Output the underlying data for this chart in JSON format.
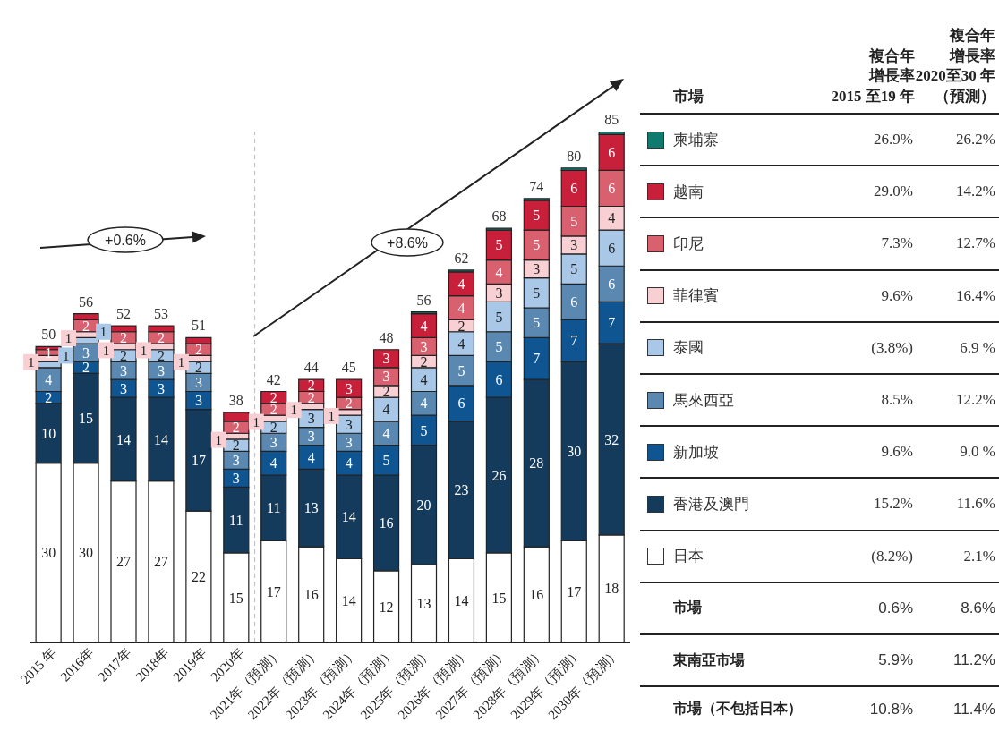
{
  "chart_data": [
    {
      "type": "bar",
      "stacked": true,
      "categories": [
        "2015 年",
        "2016年",
        "2017年",
        "2018年",
        "2019年",
        "2020年",
        "2021年（預測）",
        "2022年（預測）",
        "2023年（預測）",
        "2024年（預測）",
        "2025年（預測）",
        "2026年（預測）",
        "2027年（預測）",
        "2028年（預測）",
        "2029年（預測）",
        "2030年（預測）"
      ],
      "series": [
        {
          "color": "#ffffff",
          "values": [
            30,
            30,
            27,
            27,
            22,
            15,
            17,
            16,
            14,
            12,
            13,
            14,
            15,
            16,
            17,
            18
          ],
          "value_labels": [
            "30",
            "30",
            "27",
            "27",
            "22",
            "15",
            "17",
            "16",
            "14",
            "12",
            "13",
            "14",
            "15",
            "16",
            "17",
            "18"
          ]
        },
        {
          "color": "#143a5c",
          "values": [
            10,
            15,
            14,
            14,
            17,
            11,
            11,
            13,
            14,
            16,
            20,
            23,
            26,
            28,
            30,
            32
          ],
          "value_labels": [
            "10",
            "15",
            "14",
            "14",
            "17",
            "11",
            "11",
            "13",
            "14",
            "16",
            "20",
            "23",
            "26",
            "28",
            "30",
            "32"
          ]
        },
        {
          "color": "#0e5592",
          "values": [
            2,
            2,
            3,
            3,
            3,
            3,
            4,
            4,
            4,
            5,
            5,
            6,
            6,
            7,
            7,
            7
          ],
          "value_labels": [
            "2",
            "2",
            "3",
            "3",
            "3",
            "3",
            "4",
            "4",
            "4",
            "5",
            "5",
            "6",
            "6",
            "7",
            "7",
            "7"
          ]
        },
        {
          "color": "#5a88b0",
          "values": [
            4,
            3,
            3,
            3,
            3,
            3,
            3,
            3,
            3,
            4,
            4,
            5,
            5,
            5,
            6,
            6
          ],
          "value_labels": [
            "4",
            "3",
            "3",
            "3",
            "3",
            "3",
            "3",
            "3",
            "3",
            "4",
            "4",
            "5",
            "5",
            "5",
            "6",
            "6"
          ]
        },
        {
          "color": "#a9c8e8",
          "values": [
            1,
            1,
            2,
            2,
            2,
            2,
            2,
            3,
            3,
            4,
            4,
            4,
            5,
            5,
            5,
            6
          ],
          "value_labels": [
            "1",
            "1",
            "2",
            "2",
            "2",
            "2",
            "2",
            "3",
            "3",
            "4",
            "4",
            "4",
            "5",
            "5",
            "5",
            "6"
          ]
        },
        {
          "color": "#f8d0d4",
          "values": [
            1,
            1,
            1,
            1,
            1,
            1,
            1,
            1,
            1,
            2,
            2,
            2,
            3,
            3,
            3,
            4
          ],
          "value_labels": [
            "1",
            "1",
            "1",
            "1",
            "1",
            "1",
            "1",
            "1",
            "1",
            "2",
            "2",
            "2",
            "3",
            "3",
            "3",
            "4"
          ]
        },
        {
          "color": "#d9606f",
          "values": [
            1,
            2,
            2,
            2,
            2,
            2,
            2,
            2,
            2,
            3,
            3,
            4,
            4,
            5,
            5,
            6
          ],
          "value_labels": [
            "1",
            "2",
            "2",
            "2",
            "2",
            "2",
            "2",
            "2",
            "2",
            "3",
            "3",
            "4",
            "4",
            "5",
            "5",
            "6"
          ]
        },
        {
          "color": "#c8203a",
          "values": [
            0.5,
            1,
            1,
            1,
            1,
            1.5,
            2,
            2,
            3,
            3,
            4,
            4,
            5,
            5,
            6,
            6
          ],
          "value_labels": [
            null,
            null,
            null,
            null,
            null,
            null,
            "2",
            "2",
            "3",
            "3",
            "4",
            "4",
            "5",
            "5",
            "6",
            "6"
          ]
        },
        {
          "color": "#0f7a6e",
          "values": [
            null,
            null,
            null,
            null,
            null,
            null,
            null,
            null,
            null,
            null,
            0.3,
            0.3,
            0.3,
            0.3,
            0.4,
            0.5
          ]
        }
      ],
      "totals": [
        "50",
        "56",
        "52",
        "53",
        "51",
        "38",
        "42",
        "44",
        "45",
        "48",
        "56",
        "62",
        "68",
        "74",
        "80",
        "85"
      ],
      "ref_lines": [
        {
          "axis": "x",
          "value": "2020年",
          "line_style": "dashed",
          "color": "#bbbbbb"
        }
      ],
      "annotations": [
        "+0.6%",
        "+8.6%"
      ]
    },
    {
      "type": "other",
      "ylabel": "市場",
      "categories": [
        "柬埔寨",
        "越南",
        "印尼",
        "菲律賓",
        "泰國",
        "馬來西亞",
        "新加坡",
        "香港及澳門",
        "日本",
        "市場",
        "東南亞市場",
        "市場（不包括日本）"
      ],
      "colors": [
        "#0f7a6e",
        "#c8203a",
        "#d9606f",
        "#f8d0d4",
        "#a9c8e8",
        "#5a88b0",
        "#0e5592",
        "#143a5c",
        "#ffffff",
        null,
        null,
        null
      ],
      "series": [
        {
          "name": "複合年增長率2015 至19 年",
          "values": [
            26.9,
            29.0,
            7.3,
            9.6,
            -3.8,
            8.5,
            9.6,
            15.2,
            -8.2,
            0.6,
            5.9,
            10.8
          ],
          "value_labels": [
            "26.9%",
            "29.0%",
            "7.3%",
            "9.6%",
            "(3.8%)",
            "8.5%",
            "9.6%",
            "15.2%",
            "(8.2%)",
            "0.6%",
            "5.9%",
            "10.8%"
          ]
        },
        {
          "name": "複合年增長率2020至30 年（預測）",
          "values": [
            26.2,
            14.2,
            12.7,
            16.4,
            6.9,
            12.2,
            9.0,
            11.6,
            2.1,
            8.6,
            11.2,
            11.4
          ],
          "value_labels": [
            "26.2%",
            "14.2%",
            "12.7%",
            "16.4%",
            "6.9 %",
            "12.2%",
            "9.0 %",
            "11.6%",
            "2.1%",
            "8.6%",
            "11.2%",
            "11.4%"
          ]
        }
      ]
    }
  ]
}
